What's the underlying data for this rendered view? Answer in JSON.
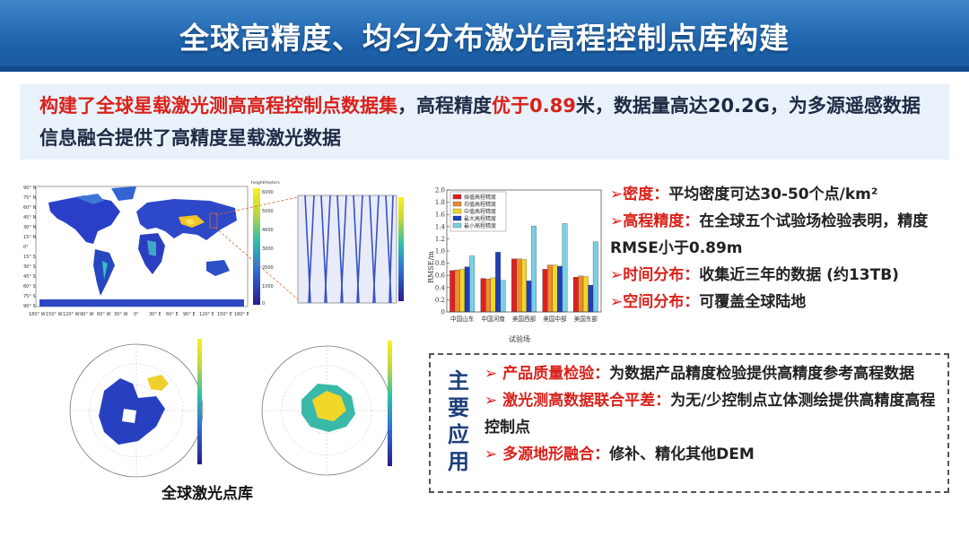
{
  "title": "全球高精度、均匀分布激光高程控制点库构建",
  "intro": {
    "part1_red": "构建了全球星载激光测高高程控制点数据集",
    "part2": "，高程精度",
    "part3_red": "优于0.89",
    "part4": "米，数据量高达20.2G，为多源遥感数据信息融合提供了高精度星载激光数据"
  },
  "bullets": [
    {
      "label": "密度：",
      "text": "平均密度可达30-50个点/km²"
    },
    {
      "label": "高程精度：",
      "text": "在全球五个试验场检验表明，精度RMSE小于0.89m"
    },
    {
      "label": "时间分布：",
      "text": "收集近三年的数据 (约13TB)"
    },
    {
      "label": "空间分布：",
      "text": "可覆盖全球陆地"
    }
  ],
  "applications": {
    "heading": [
      "主",
      "要",
      "应",
      "用"
    ],
    "items": [
      {
        "label": "产品质量检验：",
        "text": "为数据产品精度检验提供高精度参考高程数据"
      },
      {
        "label": "激光测高数据联合平差：",
        "text": "为无/少控制点立体测绘提供高精度高程控制点"
      },
      {
        "label": "多源地形融合：",
        "text": "修补、精化其他DEM"
      }
    ]
  },
  "caption": "全球激光点库",
  "map": {
    "colorbar_title": "height/meters",
    "colorbar_ticks": [
      "6000",
      "5000",
      "4000",
      "3000",
      "2000",
      "1000",
      "0"
    ],
    "lat_ticks": [
      "90° N",
      "75° N",
      "60° N",
      "45° N",
      "30° N",
      "15° N",
      "0°",
      "15° S",
      "30° S",
      "45° S",
      "60° S",
      "75° S",
      "90° S"
    ],
    "lon_ticks": [
      "180° W",
      "150° W",
      "120° W",
      "90° W",
      "60° W",
      "30° W",
      "0°",
      "30° E",
      "60° E",
      "90° E",
      "120° E",
      "150° E",
      "180° E"
    ]
  },
  "chart_data": {
    "type": "bar",
    "title": "",
    "xlabel": "试验场",
    "ylabel": "RMSE/m",
    "ylim": [
      0,
      2.0
    ],
    "yticks": [
      0,
      0.2,
      0.4,
      0.6,
      0.8,
      1.0,
      1.2,
      1.4,
      1.6,
      1.8,
      2.0
    ],
    "legend_position": "top-left",
    "categories": [
      "中国山东",
      "中国河南",
      "美国西部",
      "美国中部",
      "美国东部"
    ],
    "series": [
      {
        "name": "插值高程精度",
        "color": "#e02020",
        "values": [
          0.68,
          0.55,
          0.87,
          0.7,
          0.57
        ]
      },
      {
        "name": "均值高程精度",
        "color": "#f08a2c",
        "values": [
          0.69,
          0.54,
          0.87,
          0.77,
          0.59
        ]
      },
      {
        "name": "中值高程精度",
        "color": "#f2d629",
        "values": [
          0.7,
          0.56,
          0.86,
          0.77,
          0.58
        ]
      },
      {
        "name": "最大高程精度",
        "color": "#1f3fb8",
        "values": [
          0.74,
          0.98,
          0.51,
          0.75,
          0.44
        ]
      },
      {
        "name": "最小高程精度",
        "color": "#7ad0e6",
        "values": [
          0.92,
          0.52,
          1.41,
          1.45,
          1.15
        ]
      }
    ]
  }
}
